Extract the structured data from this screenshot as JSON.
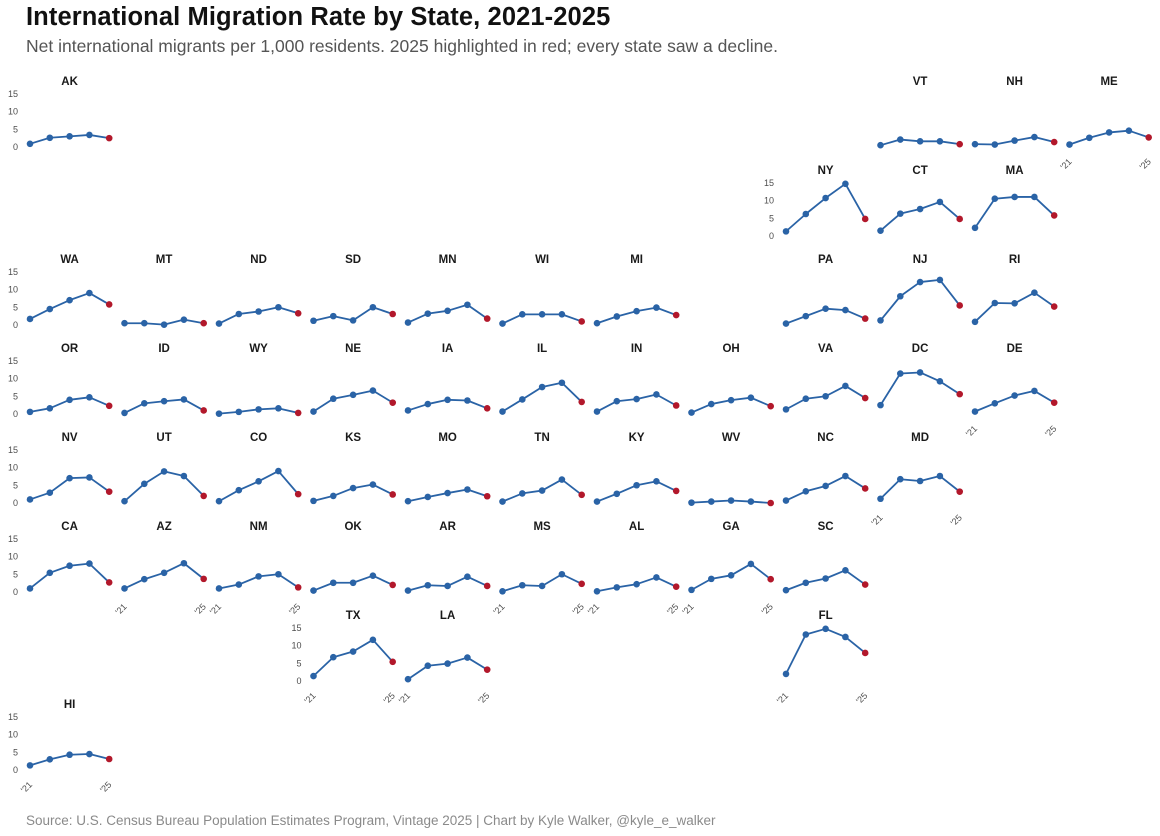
{
  "header": {
    "title": "International Migration Rate by State, 2021-2025",
    "subtitle": "Net international migrants per 1,000 residents. 2025 highlighted in red; every state saw a decline."
  },
  "footer": {
    "caption": "Source: U.S. Census Bureau Population Estimates Program, Vintage 2025 | Chart by Kyle Walker, @kyle_e_walker"
  },
  "chart_data": {
    "type": "line",
    "layout": "geofacet small multiples (US state grid)",
    "title": "International Migration Rate by State, 2021-2025",
    "subtitle": "Net international migrants per 1,000 residents. 2025 highlighted in red; every state saw a decline.",
    "xlabel": "",
    "ylabel": "",
    "x": [
      2021,
      2022,
      2023,
      2024,
      2025
    ],
    "x_tick_labels": [
      "'21",
      "'25"
    ],
    "ylim": [
      0,
      15
    ],
    "y_ticks": [
      0,
      5,
      10,
      15
    ],
    "grid": false,
    "legend": "none",
    "colors": {
      "line": "#2a63a6",
      "point": "#2a63a6",
      "highlight_2025": "#b2182b"
    },
    "states": [
      {
        "abbr": "AK",
        "row": 0,
        "col": 0,
        "values": [
          0.9,
          2.6,
          3.0,
          3.4,
          2.5
        ],
        "y_axis": true
      },
      {
        "abbr": "VT",
        "row": 0,
        "col": 9,
        "values": [
          0.5,
          2.1,
          1.6,
          1.6,
          0.8
        ]
      },
      {
        "abbr": "NH",
        "row": 0,
        "col": 10,
        "values": [
          0.8,
          0.7,
          1.8,
          2.8,
          1.4
        ]
      },
      {
        "abbr": "ME",
        "row": 0,
        "col": 11,
        "values": [
          0.7,
          2.6,
          4.1,
          4.6,
          2.7
        ],
        "x_axis": true
      },
      {
        "abbr": "NY",
        "row": 1,
        "col": 8,
        "values": [
          1.3,
          6.2,
          10.7,
          14.7,
          4.8
        ],
        "y_axis": true
      },
      {
        "abbr": "CT",
        "row": 1,
        "col": 9,
        "values": [
          1.5,
          6.3,
          7.6,
          9.6,
          4.8
        ]
      },
      {
        "abbr": "MA",
        "row": 1,
        "col": 10,
        "values": [
          2.3,
          10.5,
          11.0,
          11.0,
          5.8
        ]
      },
      {
        "abbr": "WA",
        "row": 2,
        "col": 0,
        "values": [
          1.7,
          4.5,
          7.0,
          9.0,
          5.8
        ],
        "y_axis": true
      },
      {
        "abbr": "MT",
        "row": 2,
        "col": 1,
        "values": [
          0.5,
          0.5,
          0.1,
          1.5,
          0.5
        ]
      },
      {
        "abbr": "ND",
        "row": 2,
        "col": 2,
        "values": [
          0.4,
          3.1,
          3.8,
          5.0,
          3.3
        ]
      },
      {
        "abbr": "SD",
        "row": 2,
        "col": 3,
        "values": [
          1.2,
          2.5,
          1.3,
          5.0,
          3.1
        ]
      },
      {
        "abbr": "MN",
        "row": 2,
        "col": 4,
        "values": [
          0.7,
          3.2,
          4.0,
          5.7,
          1.8
        ]
      },
      {
        "abbr": "WI",
        "row": 2,
        "col": 5,
        "values": [
          0.4,
          3.0,
          3.0,
          3.0,
          1.0
        ]
      },
      {
        "abbr": "MI",
        "row": 2,
        "col": 6,
        "values": [
          0.5,
          2.4,
          3.9,
          4.9,
          2.8
        ]
      },
      {
        "abbr": "PA",
        "row": 2,
        "col": 8,
        "values": [
          0.4,
          2.5,
          4.6,
          4.2,
          1.8
        ]
      },
      {
        "abbr": "NJ",
        "row": 2,
        "col": 9,
        "values": [
          1.3,
          8.1,
          12.1,
          12.7,
          5.5
        ]
      },
      {
        "abbr": "RI",
        "row": 2,
        "col": 10,
        "values": [
          0.9,
          6.2,
          6.1,
          9.1,
          5.2
        ]
      },
      {
        "abbr": "OR",
        "row": 3,
        "col": 0,
        "values": [
          0.6,
          1.6,
          4.0,
          4.7,
          2.3
        ],
        "y_axis": true
      },
      {
        "abbr": "ID",
        "row": 3,
        "col": 1,
        "values": [
          0.3,
          3.0,
          3.6,
          4.1,
          1.0
        ]
      },
      {
        "abbr": "WY",
        "row": 3,
        "col": 2,
        "values": [
          0.1,
          0.6,
          1.3,
          1.6,
          0.3
        ]
      },
      {
        "abbr": "NE",
        "row": 3,
        "col": 3,
        "values": [
          0.7,
          4.3,
          5.4,
          6.6,
          3.2
        ]
      },
      {
        "abbr": "IA",
        "row": 3,
        "col": 4,
        "values": [
          1.0,
          2.8,
          4.0,
          3.8,
          1.6
        ]
      },
      {
        "abbr": "IL",
        "row": 3,
        "col": 5,
        "values": [
          0.7,
          4.1,
          7.6,
          8.8,
          3.4
        ]
      },
      {
        "abbr": "IN",
        "row": 3,
        "col": 6,
        "values": [
          0.7,
          3.6,
          4.2,
          5.5,
          2.4
        ]
      },
      {
        "abbr": "OH",
        "row": 3,
        "col": 7,
        "values": [
          0.4,
          2.8,
          3.9,
          4.6,
          2.2
        ]
      },
      {
        "abbr": "VA",
        "row": 3,
        "col": 8,
        "values": [
          1.3,
          4.3,
          5.0,
          7.9,
          4.5
        ]
      },
      {
        "abbr": "DC",
        "row": 3,
        "col": 9,
        "values": [
          2.5,
          11.4,
          11.7,
          9.2,
          5.6
        ]
      },
      {
        "abbr": "DE",
        "row": 3,
        "col": 10,
        "values": [
          0.7,
          3.0,
          5.2,
          6.5,
          3.2
        ],
        "x_axis": true
      },
      {
        "abbr": "NV",
        "row": 4,
        "col": 0,
        "values": [
          1.0,
          2.9,
          7.0,
          7.2,
          3.2
        ],
        "y_axis": true
      },
      {
        "abbr": "UT",
        "row": 4,
        "col": 1,
        "values": [
          0.5,
          5.4,
          8.9,
          7.6,
          2.0
        ]
      },
      {
        "abbr": "CO",
        "row": 4,
        "col": 2,
        "values": [
          0.5,
          3.6,
          6.1,
          9.0,
          2.5
        ]
      },
      {
        "abbr": "KS",
        "row": 4,
        "col": 3,
        "values": [
          0.6,
          2.0,
          4.2,
          5.2,
          2.4
        ]
      },
      {
        "abbr": "MO",
        "row": 4,
        "col": 4,
        "values": [
          0.5,
          1.7,
          2.8,
          3.8,
          1.9
        ]
      },
      {
        "abbr": "TN",
        "row": 4,
        "col": 5,
        "values": [
          0.4,
          2.7,
          3.5,
          6.6,
          2.3
        ]
      },
      {
        "abbr": "KY",
        "row": 4,
        "col": 6,
        "values": [
          0.4,
          2.6,
          5.0,
          6.1,
          3.4
        ]
      },
      {
        "abbr": "WV",
        "row": 4,
        "col": 7,
        "values": [
          0.1,
          0.4,
          0.7,
          0.4,
          0.0
        ]
      },
      {
        "abbr": "NC",
        "row": 4,
        "col": 8,
        "values": [
          0.7,
          3.3,
          4.8,
          7.6,
          4.1
        ]
      },
      {
        "abbr": "MD",
        "row": 4,
        "col": 9,
        "values": [
          1.2,
          6.7,
          6.2,
          7.6,
          3.2
        ],
        "x_axis": true
      },
      {
        "abbr": "CA",
        "row": 5,
        "col": 0,
        "values": [
          1.0,
          5.4,
          7.4,
          8.0,
          2.7
        ],
        "y_axis": true
      },
      {
        "abbr": "AZ",
        "row": 5,
        "col": 1,
        "values": [
          1.0,
          3.6,
          5.4,
          8.1,
          3.7
        ],
        "x_axis": true
      },
      {
        "abbr": "NM",
        "row": 5,
        "col": 2,
        "values": [
          1.0,
          2.1,
          4.4,
          5.0,
          1.3
        ],
        "x_axis": true
      },
      {
        "abbr": "OK",
        "row": 5,
        "col": 3,
        "values": [
          0.4,
          2.6,
          2.6,
          4.6,
          2.0
        ]
      },
      {
        "abbr": "AR",
        "row": 5,
        "col": 4,
        "values": [
          0.4,
          1.9,
          1.7,
          4.3,
          1.7
        ]
      },
      {
        "abbr": "MS",
        "row": 5,
        "col": 5,
        "values": [
          0.2,
          1.9,
          1.7,
          5.0,
          2.3
        ],
        "x_axis": true
      },
      {
        "abbr": "AL",
        "row": 5,
        "col": 6,
        "values": [
          0.2,
          1.3,
          2.2,
          4.1,
          1.5
        ],
        "x_axis": true
      },
      {
        "abbr": "GA",
        "row": 5,
        "col": 7,
        "values": [
          0.6,
          3.7,
          4.7,
          7.9,
          3.6
        ],
        "x_axis": true
      },
      {
        "abbr": "SC",
        "row": 5,
        "col": 8,
        "values": [
          0.5,
          2.6,
          3.8,
          6.1,
          2.1
        ]
      },
      {
        "abbr": "TX",
        "row": 6,
        "col": 3,
        "values": [
          1.4,
          6.7,
          8.3,
          11.6,
          5.4
        ],
        "y_axis": true,
        "x_axis": true
      },
      {
        "abbr": "LA",
        "row": 6,
        "col": 4,
        "values": [
          0.5,
          4.3,
          4.9,
          6.6,
          3.2
        ],
        "x_axis": true
      },
      {
        "abbr": "FL",
        "row": 6,
        "col": 8,
        "values": [
          2.0,
          13.1,
          14.7,
          12.4,
          7.9
        ],
        "x_axis": true
      },
      {
        "abbr": "HI",
        "row": 7,
        "col": 0,
        "values": [
          1.3,
          3.0,
          4.3,
          4.5,
          3.1
        ],
        "y_axis": true,
        "x_axis": true
      }
    ]
  }
}
